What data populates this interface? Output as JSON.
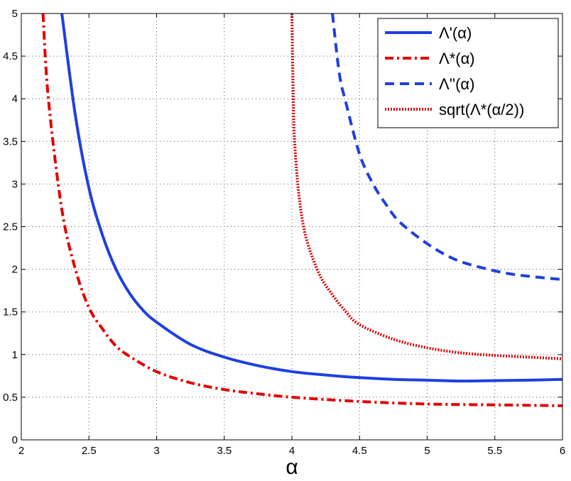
{
  "chart_data": {
    "type": "line",
    "xlabel": "α",
    "ylabel": "",
    "xlim": [
      2,
      6
    ],
    "ylim": [
      0,
      5
    ],
    "x_ticks": [
      "2",
      "2.5",
      "3",
      "3.5",
      "4",
      "4.5",
      "5",
      "5.5",
      "6"
    ],
    "y_ticks": [
      "0",
      "0.5",
      "1",
      "1.5",
      "2",
      "2.5",
      "3",
      "3.5",
      "4",
      "4.5",
      "5"
    ],
    "grid": true,
    "legend_position": "top-right",
    "series": [
      {
        "name": "Λ'(α)",
        "color": "#1f3fe0",
        "style": "solid",
        "x": [
          2.3,
          2.4,
          2.5,
          2.6,
          2.7,
          2.8,
          2.9,
          3.0,
          3.25,
          3.5,
          3.75,
          4.0,
          4.25,
          4.5,
          4.75,
          5.0,
          5.25,
          5.5,
          5.75,
          6.0
        ],
        "y": [
          5.0,
          3.8,
          2.95,
          2.4,
          2.0,
          1.72,
          1.52,
          1.38,
          1.12,
          0.97,
          0.87,
          0.8,
          0.76,
          0.73,
          0.71,
          0.7,
          0.69,
          0.695,
          0.7,
          0.71
        ]
      },
      {
        "name": "Λ*(α)",
        "color": "#e00000",
        "style": "dashdot",
        "x": [
          2.16,
          2.2,
          2.3,
          2.4,
          2.5,
          2.6,
          2.7,
          2.8,
          3.0,
          3.25,
          3.5,
          3.75,
          4.0,
          4.5,
          5.0,
          5.5,
          6.0
        ],
        "y": [
          5.0,
          4.0,
          2.7,
          2.0,
          1.55,
          1.3,
          1.1,
          0.98,
          0.8,
          0.67,
          0.59,
          0.54,
          0.5,
          0.45,
          0.42,
          0.41,
          0.4
        ]
      },
      {
        "name": "Λ''(α)",
        "color": "#1f3fe0",
        "style": "dashed",
        "x": [
          4.3,
          4.35,
          4.4,
          4.5,
          4.6,
          4.7,
          4.8,
          5.0,
          5.2,
          5.4,
          5.6,
          5.8,
          6.0
        ],
        "y": [
          5.0,
          4.3,
          3.95,
          3.35,
          3.0,
          2.75,
          2.55,
          2.3,
          2.12,
          2.02,
          1.95,
          1.91,
          1.88
        ]
      },
      {
        "name": "sqrt(Λ*(α/2))",
        "color": "#e00000",
        "style": "dotted",
        "x": [
          4.0,
          4.01,
          4.02,
          4.05,
          4.1,
          4.2,
          4.3,
          4.4,
          4.5,
          4.75,
          5.0,
          5.25,
          5.5,
          5.75,
          6.0
        ],
        "y": [
          5.0,
          4.0,
          3.5,
          2.9,
          2.4,
          1.95,
          1.7,
          1.5,
          1.35,
          1.18,
          1.08,
          1.02,
          0.99,
          0.97,
          0.95
        ]
      }
    ]
  }
}
